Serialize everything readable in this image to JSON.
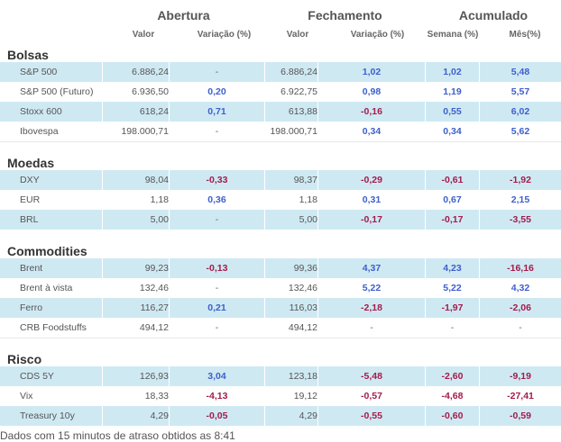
{
  "header": {
    "groups": [
      "Abertura",
      "Fechamento",
      "Acumulado"
    ],
    "columns": [
      "Valor",
      "Variação (%)",
      "Valor",
      "Variação (%)",
      "Semana (%)",
      "Mês(%)"
    ]
  },
  "sections": [
    {
      "title": "Bolsas",
      "rows": [
        {
          "name": "S&P 500",
          "open_value": "6.886,24",
          "open_change": "-",
          "close_value": "6.886,24",
          "close_change": "1,02",
          "week": "1,02",
          "month": "5,48"
        },
        {
          "name": "S&P 500 (Futuro)",
          "open_value": "6.936,50",
          "open_change": "0,20",
          "close_value": "6.922,75",
          "close_change": "0,98",
          "week": "1,19",
          "month": "5,57"
        },
        {
          "name": "Stoxx 600",
          "open_value": "618,24",
          "open_change": "0,71",
          "close_value": "613,88",
          "close_change": "-0,16",
          "week": "0,55",
          "month": "6,02"
        },
        {
          "name": "Ibovespa",
          "open_value": "198.000,71",
          "open_change": "-",
          "close_value": "198.000,71",
          "close_change": "0,34",
          "week": "0,34",
          "month": "5,62"
        }
      ]
    },
    {
      "title": "Moedas",
      "rows": [
        {
          "name": "DXY",
          "open_value": "98,04",
          "open_change": "-0,33",
          "close_value": "98,37",
          "close_change": "-0,29",
          "week": "-0,61",
          "month": "-1,92"
        },
        {
          "name": "EUR",
          "open_value": "1,18",
          "open_change": "0,36",
          "close_value": "1,18",
          "close_change": "0,31",
          "week": "0,67",
          "month": "2,15"
        },
        {
          "name": "BRL",
          "open_value": "5,00",
          "open_change": "-",
          "close_value": "5,00",
          "close_change": "-0,17",
          "week": "-0,17",
          "month": "-3,55"
        }
      ]
    },
    {
      "title": "Commodities",
      "rows": [
        {
          "name": "Brent",
          "open_value": "99,23",
          "open_change": "-0,13",
          "close_value": "99,36",
          "close_change": "4,37",
          "week": "4,23",
          "month": "-16,16"
        },
        {
          "name": "Brent à vista",
          "open_value": "132,46",
          "open_change": "-",
          "close_value": "132,46",
          "close_change": "5,22",
          "week": "5,22",
          "month": "4,32"
        },
        {
          "name": "Ferro",
          "open_value": "116,27",
          "open_change": "0,21",
          "close_value": "116,03",
          "close_change": "-2,18",
          "week": "-1,97",
          "month": "-2,06"
        },
        {
          "name": "CRB Foodstuffs",
          "open_value": "494,12",
          "open_change": "-",
          "close_value": "494,12",
          "close_change": "-",
          "week": "-",
          "month": "-"
        }
      ]
    },
    {
      "title": "Risco",
      "rows": [
        {
          "name": "CDS 5Y",
          "open_value": "126,93",
          "open_change": "3,04",
          "close_value": "123,18",
          "close_change": "-5,48",
          "week": "-2,60",
          "month": "-9,19"
        },
        {
          "name": "Vix",
          "open_value": "18,33",
          "open_change": "-4,13",
          "close_value": "19,12",
          "close_change": "-0,57",
          "week": "-4,68",
          "month": "-27,41"
        },
        {
          "name": "Treasury 10y",
          "open_value": "4,29",
          "open_change": "-0,05",
          "close_value": "4,29",
          "close_change": "-0,55",
          "week": "-0,60",
          "month": "-0,59"
        }
      ]
    }
  ],
  "colors": {
    "positive": "#3d5fcc",
    "negative": "#a31c4b",
    "row_highlight": "#cfe9f3"
  },
  "footer": "Dados com 15 minutos de atraso obtidos as 8:41"
}
